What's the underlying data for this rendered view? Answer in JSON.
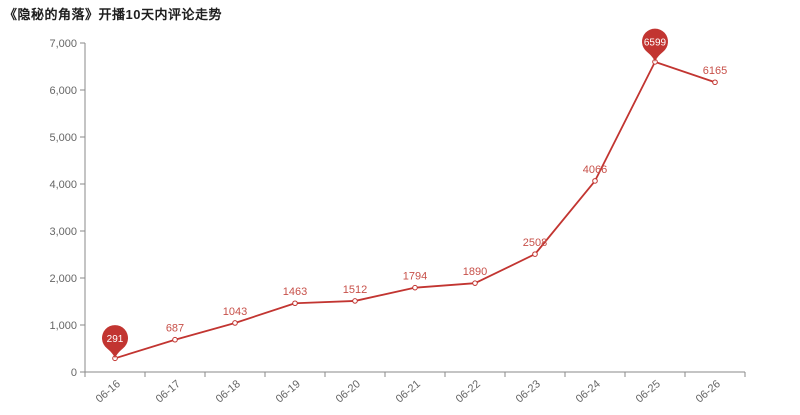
{
  "chart_data": {
    "type": "line",
    "title": "《隐秘的角落》开播10天内评论走势",
    "categories": [
      "06-16",
      "06-17",
      "06-18",
      "06-19",
      "06-20",
      "06-21",
      "06-22",
      "06-23",
      "06-24",
      "06-25",
      "06-26"
    ],
    "values": [
      291,
      687,
      1043,
      1463,
      1512,
      1794,
      1890,
      2508,
      4066,
      6599,
      6165
    ],
    "point_labels": [
      "291",
      "687",
      "1043",
      "1463",
      "1512",
      "1794",
      "1890",
      "2508",
      "4066",
      "6599",
      "6165"
    ],
    "xlabel": "",
    "ylabel": "",
    "ylim": [
      0,
      7000
    ],
    "ytick_interval": 1000,
    "ytick_labels": [
      "0",
      "1,000",
      "2,000",
      "3,000",
      "4,000",
      "5,000",
      "6,000",
      "7,000"
    ],
    "x_label_rotation_deg": 40,
    "grid": false,
    "legend": "none",
    "marked_points": [
      {
        "kind": "min",
        "index": 0,
        "label": "291"
      },
      {
        "kind": "max",
        "index": 9,
        "label": "6599"
      }
    ],
    "colors": {
      "line": "#c23531",
      "point_fill": "#ffffff",
      "point_stroke": "#c23531",
      "data_label": "#c75049",
      "pin_fill": "#c23531",
      "pin_text": "#ffffff",
      "axis_line": "#8a8a8a",
      "tick_label": "#666666",
      "title": "#1f1f1f",
      "background": "#ffffff"
    }
  }
}
